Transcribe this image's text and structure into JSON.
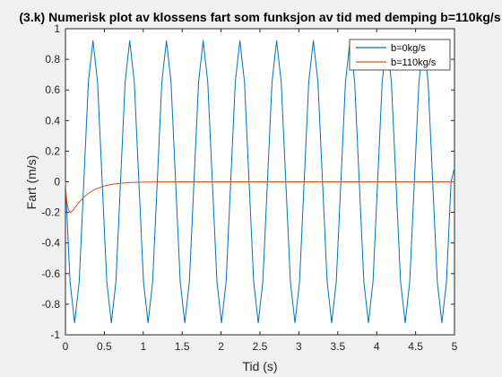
{
  "chart_data": {
    "type": "line",
    "title": "(3.k) Numerisk plot av klossens fart som funksjon av tid med demping b=110kg/s",
    "xlabel": "Tid (s)",
    "ylabel": "Fart (m/s)",
    "xlim": [
      0,
      5
    ],
    "ylim": [
      -1,
      1
    ],
    "xticks": [
      0,
      0.5,
      1,
      1.5,
      2,
      2.5,
      3,
      3.5,
      4,
      4.5,
      5
    ],
    "xtick_labels": [
      "0",
      "0.5",
      "1",
      "1.5",
      "2",
      "2.5",
      "3",
      "3.5",
      "4",
      "4.5",
      "5"
    ],
    "yticks": [
      -1,
      -0.8,
      -0.6,
      -0.4,
      -0.2,
      0,
      0.2,
      0.4,
      0.6,
      0.8,
      1
    ],
    "ytick_labels": [
      "-1",
      "-0.8",
      "-0.6",
      "-0.4",
      "-0.2",
      "0",
      "0.2",
      "0.4",
      "0.6",
      "0.8",
      "1"
    ],
    "grid": false,
    "legend_position": "top-right",
    "series": [
      {
        "name": "b=0kg/s",
        "color": "#0072BD",
        "x": [
          0,
          0.059,
          0.118,
          0.177,
          0.236,
          0.295,
          0.354,
          0.413,
          0.472,
          0.531,
          0.59,
          0.649,
          0.708,
          0.767,
          0.826,
          0.885,
          0.944,
          1.003,
          1.062,
          1.121,
          1.18,
          1.239,
          1.298,
          1.357,
          1.416,
          1.475,
          1.534,
          1.593,
          1.652,
          1.711,
          1.77,
          1.829,
          1.888,
          1.947,
          2.006,
          2.065,
          2.124,
          2.183,
          2.242,
          2.301,
          2.36,
          2.419,
          2.478,
          2.537,
          2.596,
          2.655,
          2.714,
          2.773,
          2.832,
          2.891,
          2.95,
          3.009,
          3.068,
          3.127,
          3.186,
          3.245,
          3.304,
          3.363,
          3.422,
          3.481,
          3.54,
          3.599,
          3.658,
          3.717,
          3.776,
          3.835,
          3.894,
          3.953,
          4.012,
          4.071,
          4.13,
          4.189,
          4.248,
          4.307,
          4.366,
          4.425,
          4.484,
          4.543,
          4.602,
          4.661,
          4.72,
          4.779,
          4.838,
          4.897,
          4.956,
          5.0
        ],
        "y": [
          0,
          -0.652,
          -0.922,
          -0.652,
          0,
          0.652,
          0.922,
          0.652,
          0,
          -0.652,
          -0.922,
          -0.652,
          0,
          0.652,
          0.922,
          0.652,
          0,
          -0.652,
          -0.922,
          -0.652,
          0,
          0.652,
          0.922,
          0.652,
          0,
          -0.652,
          -0.922,
          -0.652,
          0,
          0.652,
          0.922,
          0.652,
          0,
          -0.652,
          -0.922,
          -0.652,
          0,
          0.652,
          0.922,
          0.652,
          0,
          -0.652,
          -0.922,
          -0.652,
          0,
          0.652,
          0.922,
          0.652,
          0,
          -0.652,
          -0.922,
          -0.652,
          0,
          0.652,
          0.922,
          0.652,
          0,
          -0.652,
          -0.922,
          -0.652,
          0,
          0.652,
          0.922,
          0.652,
          0,
          -0.652,
          -0.922,
          -0.652,
          0,
          0.652,
          0.922,
          0.652,
          0,
          -0.652,
          -0.922,
          -0.652,
          0,
          0.652,
          0.922,
          0.652,
          0,
          -0.652,
          -0.922,
          -0.652,
          0,
          0.09
        ]
      },
      {
        "name": "b=110kg/s",
        "color": "#D95319",
        "x": [
          0,
          0.01,
          0.02,
          0.04,
          0.06,
          0.08,
          0.1,
          0.12,
          0.15,
          0.2,
          0.25,
          0.3,
          0.35,
          0.4,
          0.5,
          0.6,
          0.7,
          0.8,
          0.9,
          1.0,
          1.1,
          1.2,
          1.3,
          1.5,
          2.0,
          2.5,
          3.0,
          3.5,
          4.0,
          4.5,
          5.0
        ],
        "y": [
          0,
          -0.09,
          -0.14,
          -0.185,
          -0.2,
          -0.195,
          -0.185,
          -0.17,
          -0.15,
          -0.12,
          -0.095,
          -0.074,
          -0.058,
          -0.045,
          -0.027,
          -0.016,
          -0.01,
          -0.006,
          -0.0035,
          -0.002,
          -0.0012,
          -0.0007,
          -0.0004,
          -0.0001,
          0,
          0,
          0,
          0,
          0,
          0,
          0
        ]
      }
    ]
  }
}
